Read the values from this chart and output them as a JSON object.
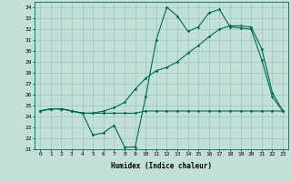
{
  "xlabel": "Humidex (Indice chaleur)",
  "xlim": [
    -0.5,
    23.5
  ],
  "ylim": [
    21,
    34.5
  ],
  "yticks": [
    21,
    22,
    23,
    24,
    25,
    26,
    27,
    28,
    29,
    30,
    31,
    32,
    33,
    34
  ],
  "xticks": [
    0,
    1,
    2,
    3,
    4,
    5,
    6,
    7,
    8,
    9,
    10,
    11,
    12,
    13,
    14,
    15,
    16,
    17,
    18,
    19,
    20,
    21,
    22,
    23
  ],
  "bg_color": "#c2e0d8",
  "line_color": "#006858",
  "line1": [
    24.5,
    24.7,
    24.7,
    24.5,
    24.3,
    22.3,
    22.5,
    23.2,
    21.2,
    21.2,
    25.8,
    31.0,
    34.0,
    33.2,
    31.8,
    32.2,
    33.5,
    33.8,
    32.2,
    32.1,
    32.0,
    29.2,
    25.8,
    24.5
  ],
  "line2": [
    24.5,
    24.7,
    24.7,
    24.5,
    24.3,
    24.3,
    24.3,
    24.3,
    24.3,
    24.3,
    24.5,
    24.5,
    24.5,
    24.5,
    24.5,
    24.5,
    24.5,
    24.5,
    24.5,
    24.5,
    24.5,
    24.5,
    24.5,
    24.5
  ],
  "line3": [
    24.5,
    24.7,
    24.7,
    24.5,
    24.3,
    24.3,
    24.5,
    24.8,
    25.3,
    26.5,
    27.5,
    28.2,
    28.5,
    29.0,
    29.8,
    30.5,
    31.3,
    32.0,
    32.3,
    32.3,
    32.2,
    30.2,
    26.2,
    24.5
  ]
}
